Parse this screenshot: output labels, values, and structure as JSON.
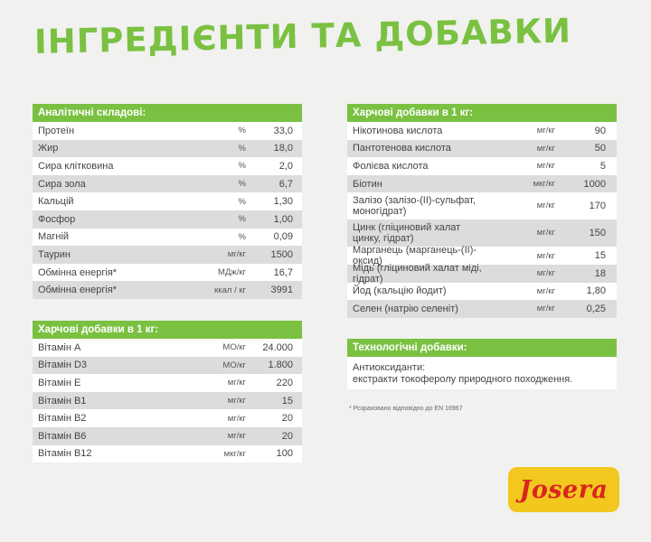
{
  "title": "ІНГРЕДІЄНТИ ТА ДОБАВКИ",
  "analytical": {
    "header": "Аналітичні складові:",
    "rows": [
      {
        "name": "Протеїн",
        "unit": "%",
        "value": "33,0"
      },
      {
        "name": "Жир",
        "unit": "%",
        "value": "18,0"
      },
      {
        "name": "Сира клітковина",
        "unit": "%",
        "value": "2,0"
      },
      {
        "name": "Сира зола",
        "unit": "%",
        "value": "6,7"
      },
      {
        "name": "Кальцій",
        "unit": "%",
        "value": "1,30"
      },
      {
        "name": "Фосфор",
        "unit": "%",
        "value": "1,00"
      },
      {
        "name": "Магній",
        "unit": "%",
        "value": "0,09"
      },
      {
        "name": "Таурин",
        "unit": "мг/кг",
        "value": "1500"
      },
      {
        "name": "Обмінна енергія*",
        "unit": "МДж/кг",
        "value": "16,7"
      },
      {
        "name": "Обмінна енергія*",
        "unit": "ккал / кг",
        "value": "3991"
      }
    ]
  },
  "nutritional_left": {
    "header": "Харчові добавки в 1 кг:",
    "rows": [
      {
        "name": "Вітамін A",
        "unit": "МО/кг",
        "value": "24.000"
      },
      {
        "name": "Вітамін D3",
        "unit": "МО/кг",
        "value": "1.800"
      },
      {
        "name": "Вітамін E",
        "unit": "мг/кг",
        "value": "220"
      },
      {
        "name": "Вітамін B1",
        "unit": "мг/кг",
        "value": "15"
      },
      {
        "name": "Вітамін B2",
        "unit": "мг/кг",
        "value": "20"
      },
      {
        "name": "Вітамін B6",
        "unit": "мг/кг",
        "value": "20"
      },
      {
        "name": "Вітамін B12",
        "unit": "мкг/кг",
        "value": "100"
      }
    ]
  },
  "nutritional_right": {
    "header": "Харчові добавки в 1 кг:",
    "rows": [
      {
        "name": "Нікотинова кислота",
        "unit": "мг/кг",
        "value": "90"
      },
      {
        "name": "Пантотенова кислота",
        "unit": "мг/кг",
        "value": "50"
      },
      {
        "name": "Фолієва кислота",
        "unit": "мг/кг",
        "value": "5"
      },
      {
        "name": "Біотин",
        "unit": "мкг/кг",
        "value": "1000"
      },
      {
        "name": "Залізо (залізо-(II)-сульфат, моногідрат)",
        "unit": "мг/кг",
        "value": "170"
      },
      {
        "name": "Цинк (гліциновий халат цинку, гідрат)",
        "unit": "мг/кг",
        "value": "150"
      },
      {
        "name": "Марганець (марганець-(II)-оксид)",
        "unit": "мг/кг",
        "value": "15"
      },
      {
        "name": "Мідь (гліциновий халат міді, гідрат)",
        "unit": "мг/кг",
        "value": "18"
      },
      {
        "name": "Йод (кальцію йодит)",
        "unit": "мг/кг",
        "value": "1,80"
      },
      {
        "name": "Селен (натрію селеніт)",
        "unit": "мг/кг",
        "value": "0,25"
      }
    ]
  },
  "technological": {
    "header": "Технологічні добавки:",
    "line1": "Антиоксиданти:",
    "line2": "екстракти токоферолу природного походження."
  },
  "footnote": "* Розраховано відповідно до EN 16967",
  "brand": {
    "logo_text": "Josera",
    "logo_bg": "#f2c81f",
    "logo_fg": "#d9261c"
  },
  "colors": {
    "accent": "#7ac142"
  }
}
